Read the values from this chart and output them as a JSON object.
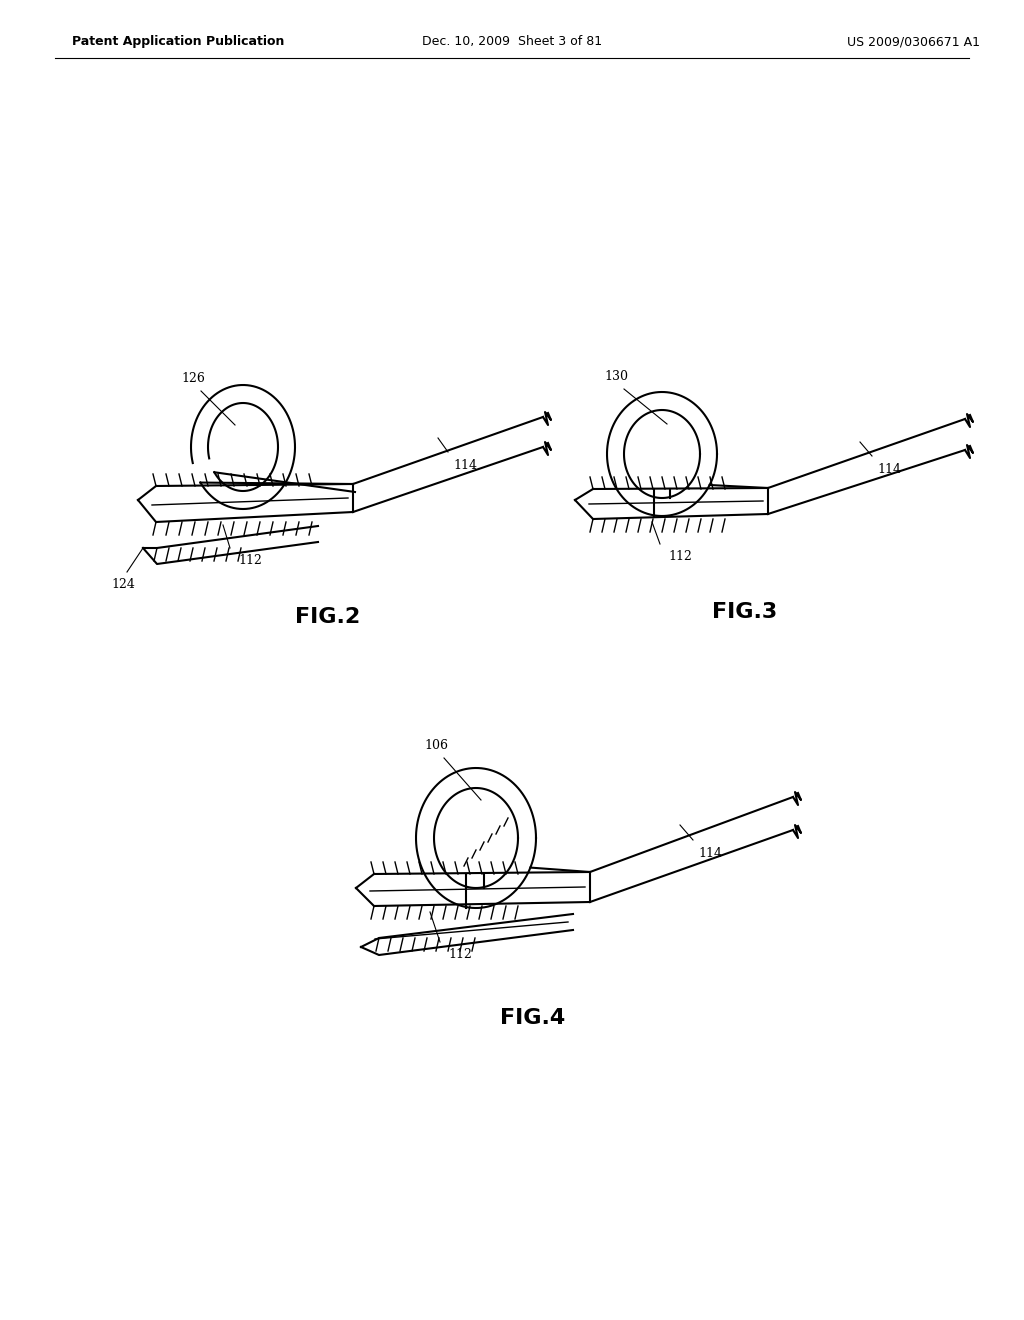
{
  "bg_color": "#ffffff",
  "line_color": "#000000",
  "header_left": "Patent Application Publication",
  "header_center": "Dec. 10, 2009  Sheet 3 of 81",
  "header_right": "US 2009/0306671 A1",
  "fig2_label": "FIG.2",
  "fig3_label": "FIG.3",
  "fig4_label": "FIG.4"
}
